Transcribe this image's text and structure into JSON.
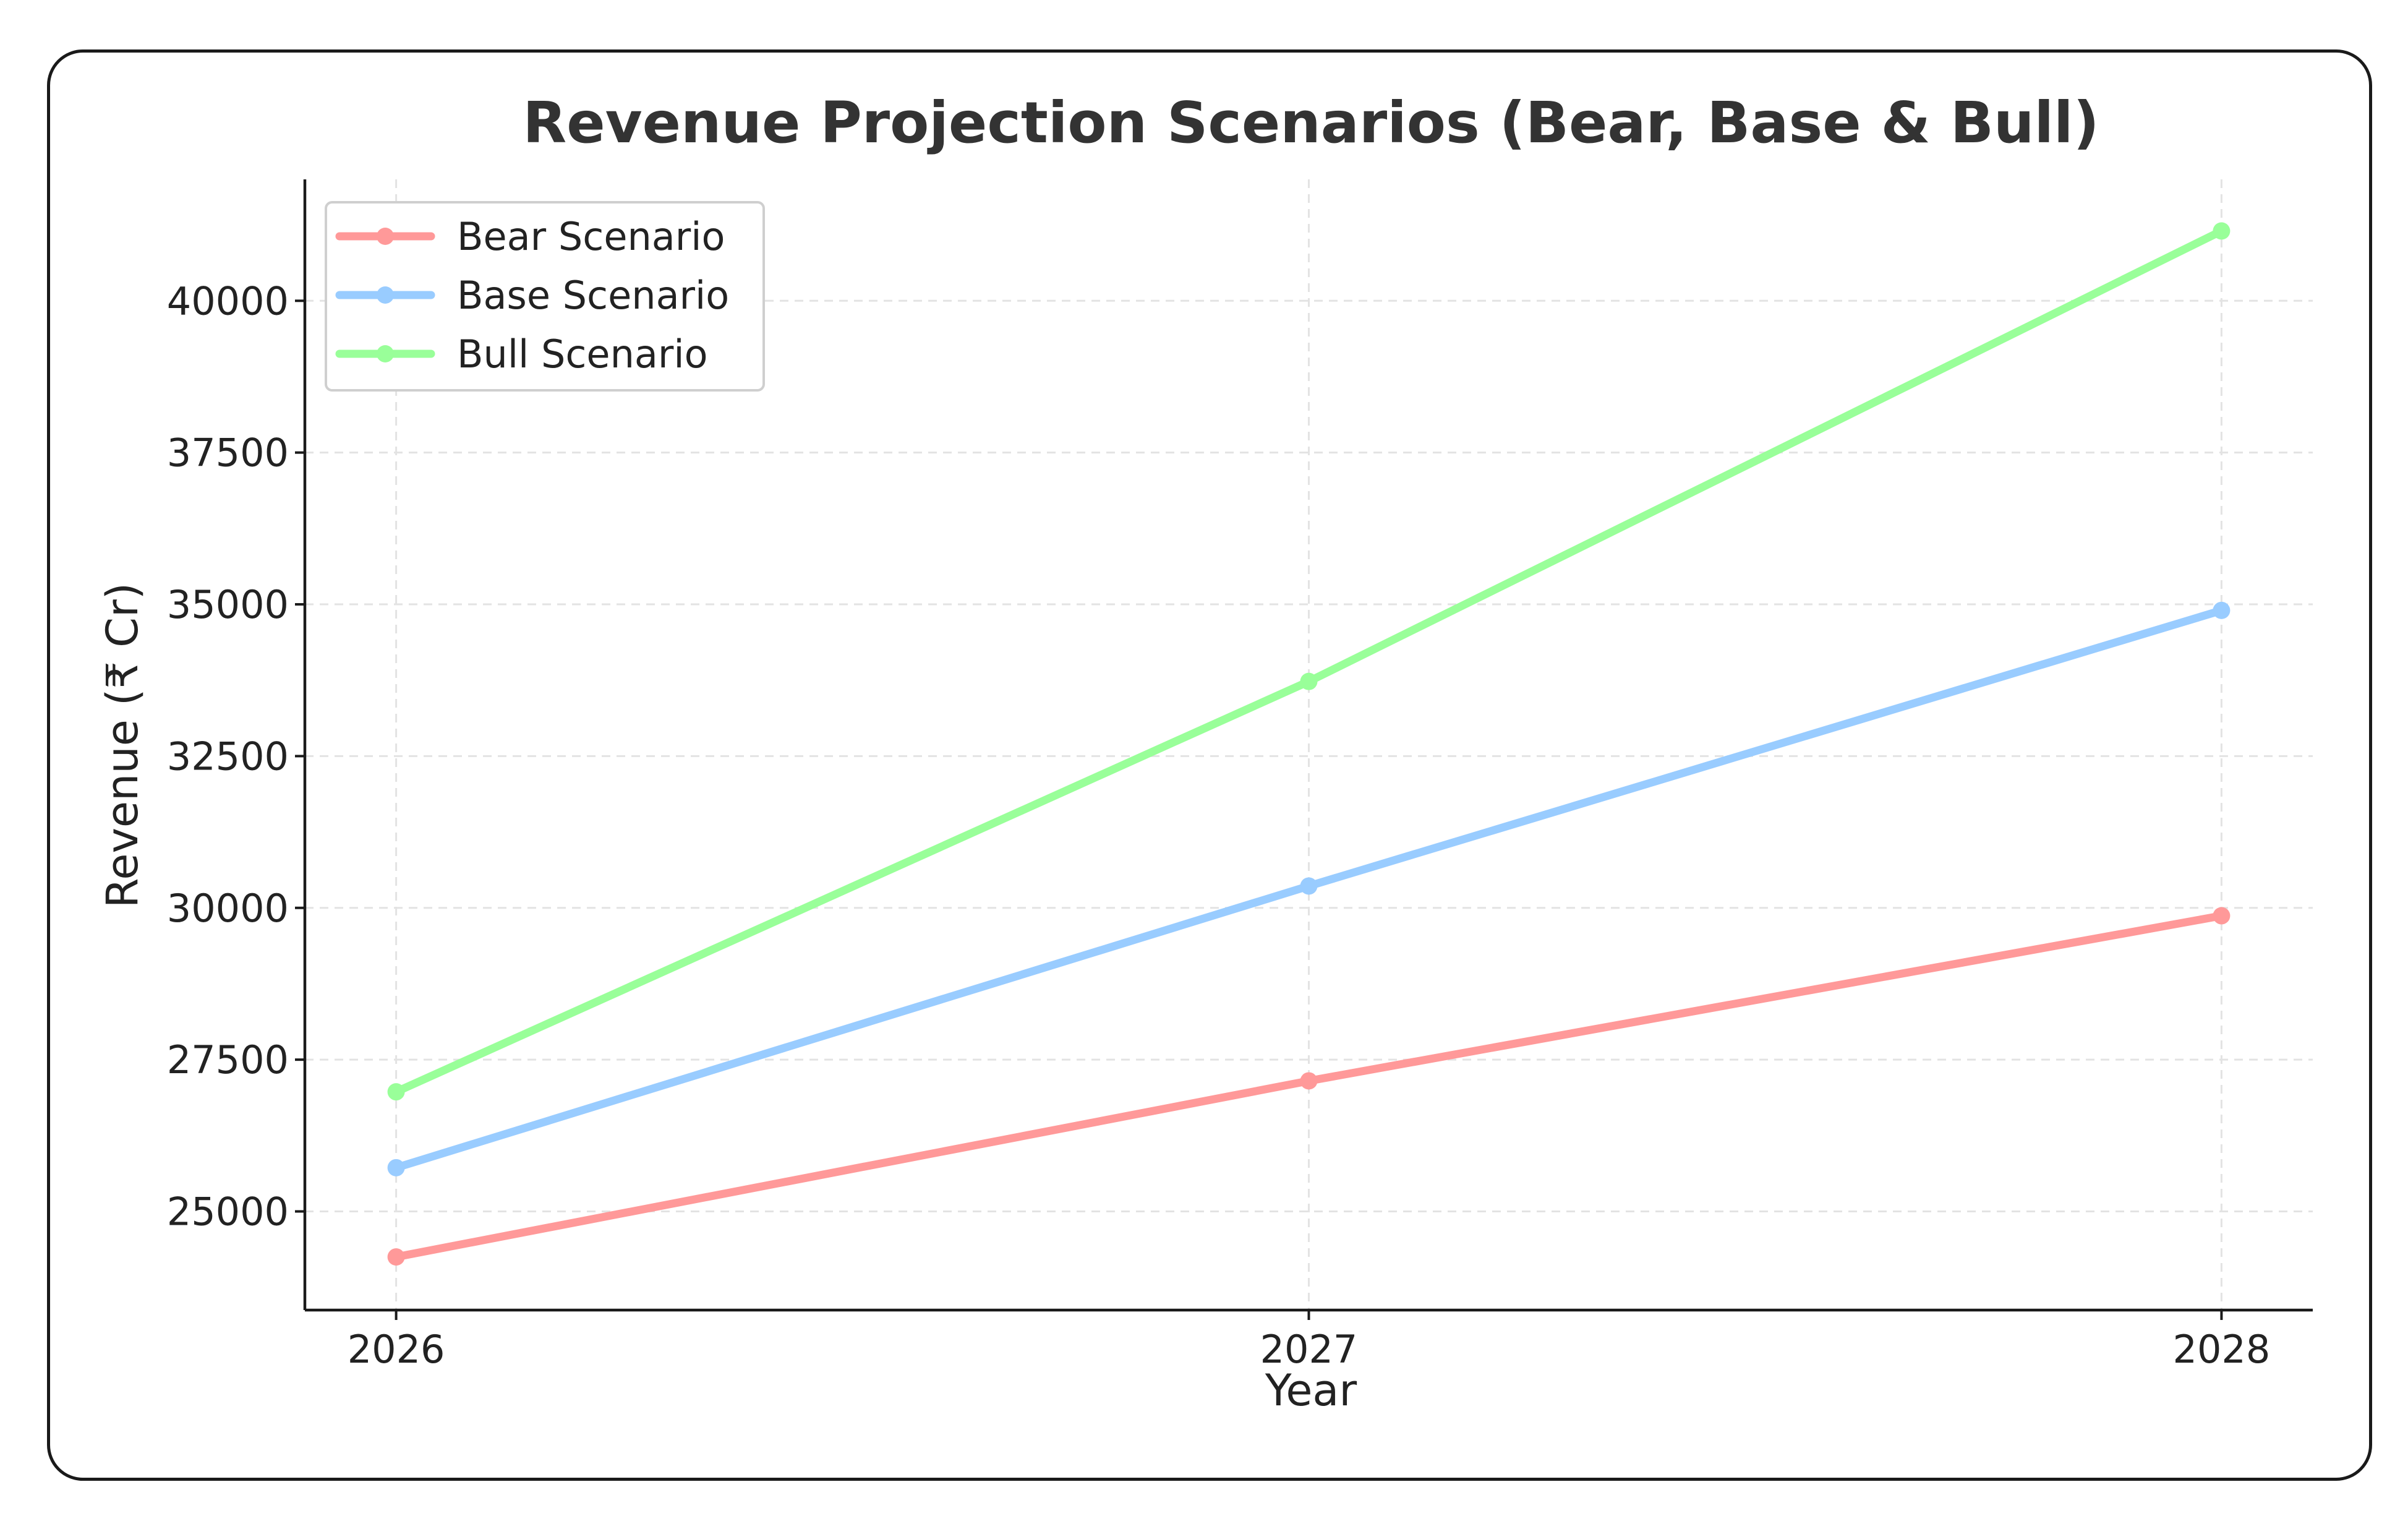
{
  "chart_data": {
    "type": "line",
    "title": "Revenue Projection Scenarios (Bear, Base & Bull)",
    "xlabel": "Year",
    "ylabel": "Revenue (₹ Cr)",
    "x": [
      2026,
      2027,
      2028
    ],
    "x_tick_labels": [
      "2026",
      "2027",
      "2028"
    ],
    "y_ticks": [
      25000,
      27500,
      30000,
      32500,
      35000,
      37500,
      40000
    ],
    "y_tick_labels": [
      "25000",
      "27500",
      "30000",
      "32500",
      "35000",
      "37500",
      "40000"
    ],
    "ylim": [
      23375,
      42000
    ],
    "xlim": [
      2025.9,
      2028.1
    ],
    "grid": true,
    "legend_position": "upper-left",
    "series": [
      {
        "name": "Bear Scenario",
        "color": "#ff9999",
        "values": [
          24250,
          27150,
          29870
        ]
      },
      {
        "name": "Base Scenario",
        "color": "#99ccff",
        "values": [
          25720,
          30360,
          34900
        ]
      },
      {
        "name": "Bull Scenario",
        "color": "#99ff99",
        "values": [
          26970,
          33730,
          41150
        ]
      }
    ]
  }
}
